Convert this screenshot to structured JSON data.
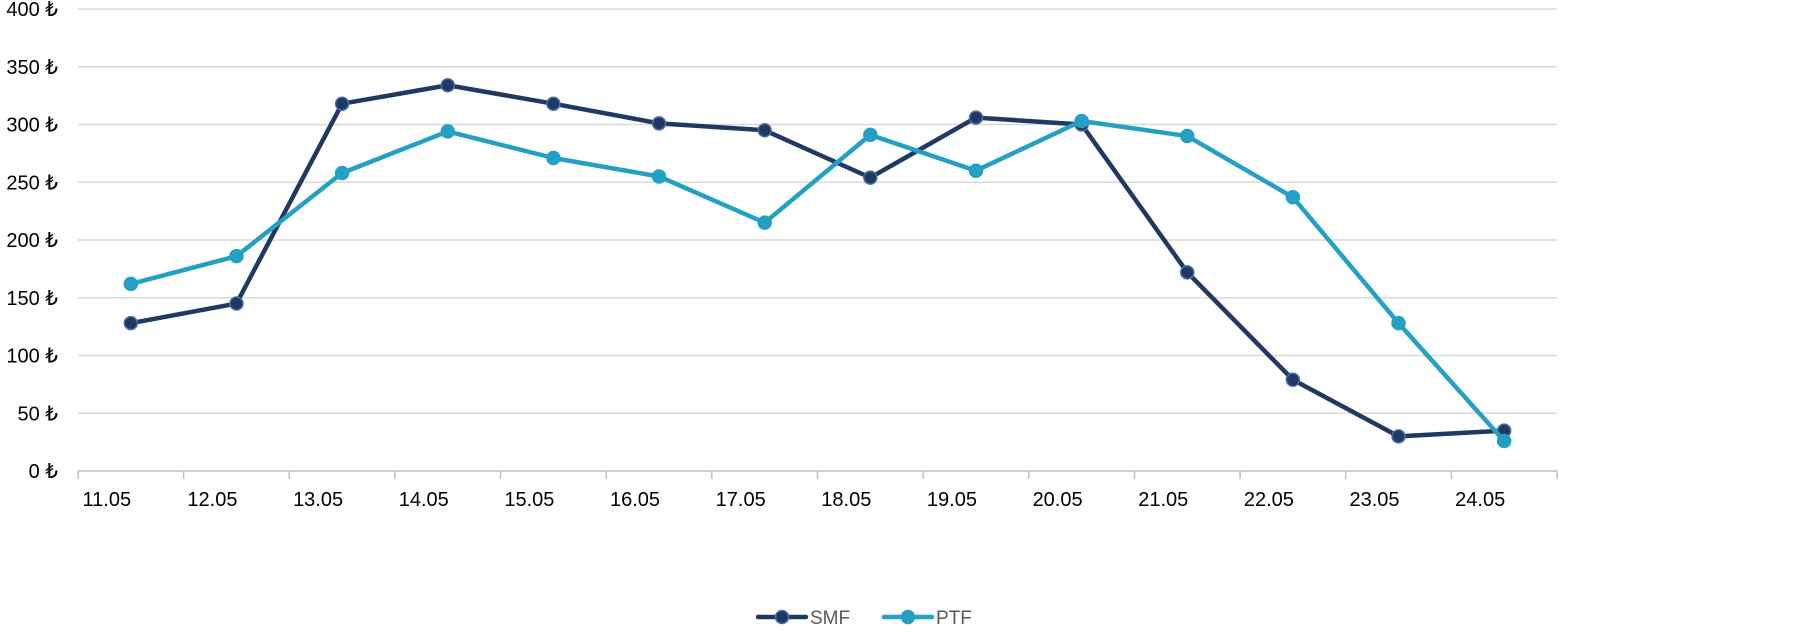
{
  "chart_data": {
    "type": "line",
    "title": "",
    "xlabel": "",
    "ylabel": "",
    "categories": [
      "11.05",
      "12.05",
      "13.05",
      "14.05",
      "15.05",
      "16.05",
      "17.05",
      "18.05",
      "19.05",
      "20.05",
      "21.05",
      "22.05",
      "23.05",
      "24.05"
    ],
    "y_tick_values": [
      0,
      50,
      100,
      150,
      200,
      250,
      300,
      350,
      400
    ],
    "y_tick_labels": [
      "0 ₺",
      "50 ₺",
      "100 ₺",
      "150 ₺",
      "200 ₺",
      "250 ₺",
      "300 ₺",
      "350 ₺",
      "400 ₺"
    ],
    "ylim": [
      0,
      400
    ],
    "grid": true,
    "legend_position": "bottom-center",
    "series": [
      {
        "name": "SMF",
        "color": "#1f3864",
        "values": [
          128,
          145,
          318,
          334,
          318,
          301,
          295,
          254,
          306,
          300,
          172,
          79,
          30,
          35
        ]
      },
      {
        "name": "PTF",
        "color": "#23a0c4",
        "values": [
          162,
          186,
          258,
          294,
          271,
          255,
          215,
          291,
          260,
          303,
          290,
          237,
          128,
          26
        ]
      }
    ]
  }
}
